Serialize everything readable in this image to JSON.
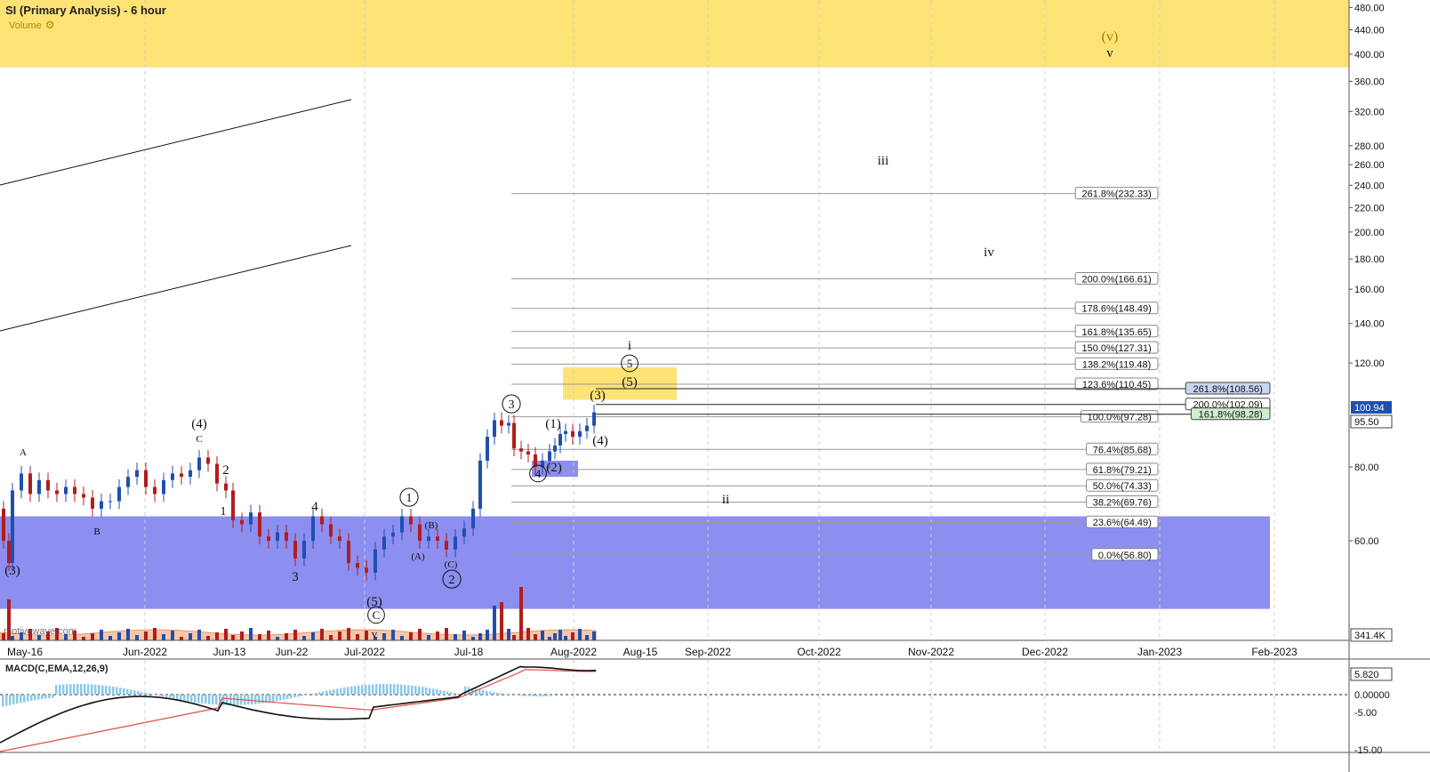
{
  "header": {
    "title": "SI (Primary Analysis) - 6 hour",
    "volume_label": "Volume",
    "watermark": "motivewave.com"
  },
  "colors": {
    "up": "#1f4fb0",
    "down": "#b31c1c",
    "target_zone": "#fde276",
    "support_zone": "#8c8ef0",
    "macd_line": "#111111",
    "signal_line": "#e05050",
    "histogram": "#8cc9e8",
    "volume_area": "#f6b48e"
  },
  "price_axis": {
    "ticks": [
      "480.00",
      "440.00",
      "400.00",
      "360.00",
      "320.00",
      "280.00",
      "260.00",
      "240.00",
      "220.00",
      "200.00",
      "180.00",
      "160.00",
      "140.00",
      "120.00",
      "100.94",
      "95.50",
      "80.00",
      "60.00"
    ],
    "current_price": "100.94",
    "prev_price": "95.50",
    "volume_value": "341.4K"
  },
  "time_axis": {
    "labels": [
      "May-16",
      "Jun-2022",
      "Jun-13",
      "Jun-22",
      "Jul-2022",
      "Jul-18",
      "Aug-2022",
      "Aug-15",
      "Sep-2022",
      "Oct-2022",
      "Nov-2022",
      "Dec-2022",
      "Jan-2023",
      "Feb-2023"
    ]
  },
  "fib_levels": [
    "261.8%(232.33)",
    "200.0%(166.61)",
    "178.6%(148.49)",
    "161.8%(135.65)",
    "150.0%(127.31)",
    "138.2%(119.48)",
    "123.6%(110.45)",
    "100.0%(97.28)",
    "76.4%(85.68)",
    "61.8%(79.21)",
    "50.0%(74.33)",
    "38.2%(69.76)",
    "23.6%(64.49)",
    "0.0%(56.80)"
  ],
  "fib_ext_levels": [
    "261.8%(108.56)",
    "200.0%(102.09)",
    "161.8%(98.28)"
  ],
  "wave_labels": {
    "v_paren": "(v)",
    "v": "v",
    "iii": "iii",
    "iv": "iv",
    "i": "i",
    "ii": "ii",
    "c5": "5",
    "p5": "(5)",
    "p3": "(3)",
    "p4": "(4)",
    "p1": "(1)",
    "p2": "(2)",
    "c4": "4",
    "c3": "3",
    "c1": "1",
    "c2": "2",
    "pB": "(B)",
    "pA": "(A)",
    "pC": "(C)",
    "l4": "4",
    "l3": "3",
    "l2": "2",
    "l1": "1",
    "p4old": "(4)",
    "lC": "C",
    "lA": "A",
    "lB": "B",
    "p3old": "(3)",
    "p5low": "(5)",
    "cC": "C",
    "lv": "v"
  },
  "macd": {
    "title": "MACD(C,EMA,12,26,9)",
    "ticks": [
      "5.820",
      "0.00000",
      "-5.00",
      "-15.00"
    ]
  },
  "chart_data": {
    "type": "candlestick",
    "title": "SI (Primary Analysis) - 6 hour",
    "ylabel": "",
    "y_scale": "log",
    "ylim": [
      42,
      500
    ],
    "x_range": [
      "2022-05-11",
      "2023-02-13"
    ],
    "series": [
      {
        "name": "",
        "ohlc_summary": [
          {
            "date": "2022-05-12",
            "low": 52,
            "high": 74
          },
          {
            "date": "2022-05-26",
            "low": 66,
            "high": 82
          },
          {
            "date": "2022-06-10",
            "low": 58,
            "high": 78
          },
          {
            "date": "2022-06-28",
            "low": 50,
            "high": 67
          },
          {
            "date": "2022-07-08",
            "low": 59,
            "high": 67
          },
          {
            "date": "2022-07-14",
            "low": 57,
            "high": 66
          },
          {
            "date": "2022-07-22",
            "low": 86,
            "high": 100
          },
          {
            "date": "2022-07-28",
            "low": 79,
            "high": 97
          },
          {
            "date": "2022-08-03",
            "low": 86,
            "high": 104
          }
        ]
      }
    ],
    "last_price": 100.94,
    "fibonacci": [
      {
        "pct": 261.8,
        "value": 232.33
      },
      {
        "pct": 200.0,
        "value": 166.61
      },
      {
        "pct": 178.6,
        "value": 148.49
      },
      {
        "pct": 161.8,
        "value": 135.65
      },
      {
        "pct": 150.0,
        "value": 127.31
      },
      {
        "pct": 138.2,
        "value": 119.48
      },
      {
        "pct": 123.6,
        "value": 110.45
      },
      {
        "pct": 100.0,
        "value": 97.28
      },
      {
        "pct": 76.4,
        "value": 85.68
      },
      {
        "pct": 61.8,
        "value": 79.21
      },
      {
        "pct": 50.0,
        "value": 74.33
      },
      {
        "pct": 38.2,
        "value": 69.76
      },
      {
        "pct": 23.6,
        "value": 64.49
      },
      {
        "pct": 0.0,
        "value": 56.8
      }
    ],
    "fibonacci_ext": [
      {
        "pct": 261.8,
        "value": 108.56
      },
      {
        "pct": 200.0,
        "value": 102.09
      },
      {
        "pct": 161.8,
        "value": 98.28
      }
    ],
    "zones": [
      {
        "name": "",
        "from": 380,
        "to": 500
      },
      {
        "name": "",
        "from": 46,
        "to": 66
      },
      {
        "name": "",
        "from": 104,
        "to": 118
      },
      {
        "name": "",
        "from": 77,
        "to": 82
      }
    ],
    "macd": {
      "fast": 12,
      "slow": 26,
      "signal": 9,
      "last": 5.82
    }
  }
}
